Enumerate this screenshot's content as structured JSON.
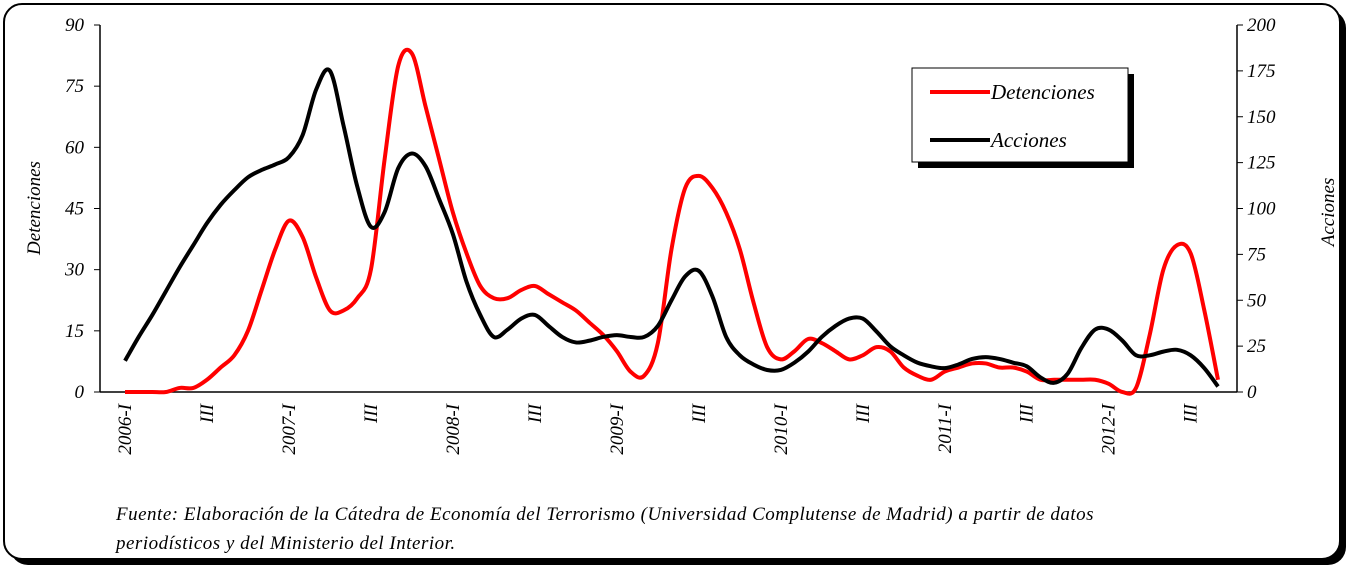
{
  "chart_data": {
    "type": "line",
    "y_label": "Detenciones",
    "y2_label": "Acciones",
    "footnote": "Fuente: Elaboración de la Cátedra de Economía del Terrorismo (Universidad Complutense de Madrid) a partir de datos periodísticos y del Ministerio del Interior.",
    "categories": [
      "2006-I",
      null,
      null,
      null,
      null,
      null,
      "III",
      null,
      null,
      null,
      null,
      null,
      "2007-I",
      null,
      null,
      null,
      null,
      null,
      "III",
      null,
      null,
      null,
      null,
      null,
      "2008-I",
      null,
      null,
      null,
      null,
      null,
      "III",
      null,
      null,
      null,
      null,
      null,
      "2009-I",
      null,
      null,
      null,
      null,
      null,
      "III",
      null,
      null,
      null,
      null,
      null,
      "2010-I",
      null,
      null,
      null,
      null,
      null,
      "III",
      null,
      null,
      null,
      null,
      null,
      "2011-I",
      null,
      null,
      null,
      null,
      null,
      "III",
      null,
      null,
      null,
      null,
      null,
      "2012-I",
      null,
      null,
      null,
      null,
      null,
      "III",
      null,
      null
    ],
    "series": [
      {
        "name": "Detenciones",
        "color": "#ff0000",
        "values": [
          0,
          0,
          0,
          0,
          1,
          1,
          3,
          6,
          9,
          15,
          25,
          35,
          42,
          38,
          28,
          20,
          20,
          23,
          30,
          57,
          80,
          83,
          70,
          57,
          44,
          34,
          26,
          23,
          23,
          25,
          26,
          24,
          22,
          20,
          17,
          14,
          10,
          5,
          4,
          12,
          35,
          50,
          53,
          50,
          44,
          35,
          22,
          11,
          8,
          10,
          13,
          12,
          10,
          8,
          9,
          11,
          10,
          6,
          4,
          3,
          5,
          6,
          7,
          7,
          6,
          6,
          5,
          3,
          3,
          3,
          3,
          3,
          2,
          0,
          1,
          14,
          30,
          36,
          34,
          20,
          3
        ]
      },
      {
        "name": "Acciones",
        "color": "#000000",
        "axis": "y2",
        "values": [
          17,
          30,
          42,
          55,
          68,
          80,
          92,
          102,
          110,
          117,
          121,
          124,
          128,
          140,
          165,
          175,
          145,
          112,
          90,
          98,
          122,
          130,
          123,
          105,
          86,
          60,
          42,
          30,
          34,
          40,
          42,
          36,
          30,
          27,
          28,
          30,
          31,
          30,
          30,
          36,
          50,
          63,
          66,
          52,
          30,
          20,
          15,
          12,
          12,
          16,
          22,
          30,
          36,
          40,
          40,
          33,
          25,
          20,
          16,
          14,
          13,
          15,
          18,
          19,
          18,
          16,
          14,
          8,
          5,
          10,
          24,
          34,
          34,
          28,
          20,
          20,
          22,
          23,
          20,
          13,
          3
        ]
      }
    ],
    "ylim": [
      0,
      90
    ],
    "yticks": [
      0,
      15,
      30,
      45,
      60,
      75,
      90
    ],
    "y2lim": [
      0,
      200
    ],
    "y2ticks": [
      0,
      25,
      50,
      75,
      100,
      125,
      150,
      175,
      200
    ],
    "legend": "top-right"
  }
}
